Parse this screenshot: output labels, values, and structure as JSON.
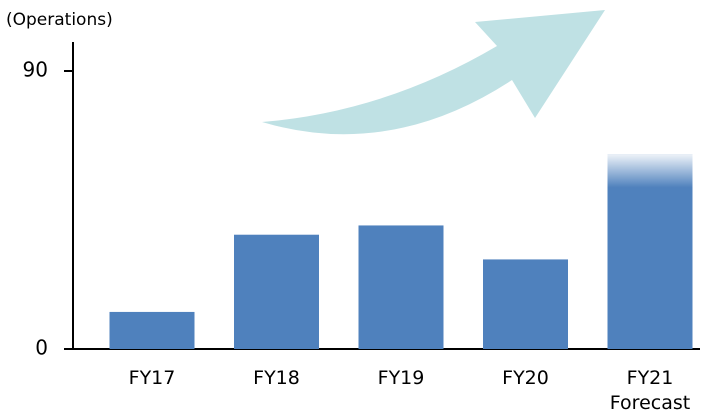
{
  "chart_data": {
    "type": "bar",
    "y_label": "(Operations)",
    "categories": [
      "FY17",
      "FY18",
      "FY19",
      "FY20",
      "FY21\nForecast"
    ],
    "values": [
      12,
      37,
      40,
      29,
      63
    ],
    "color": "#4f81bd",
    "ylim": [
      0,
      90
    ],
    "yticks": [
      0,
      90
    ],
    "grid": false
  }
}
